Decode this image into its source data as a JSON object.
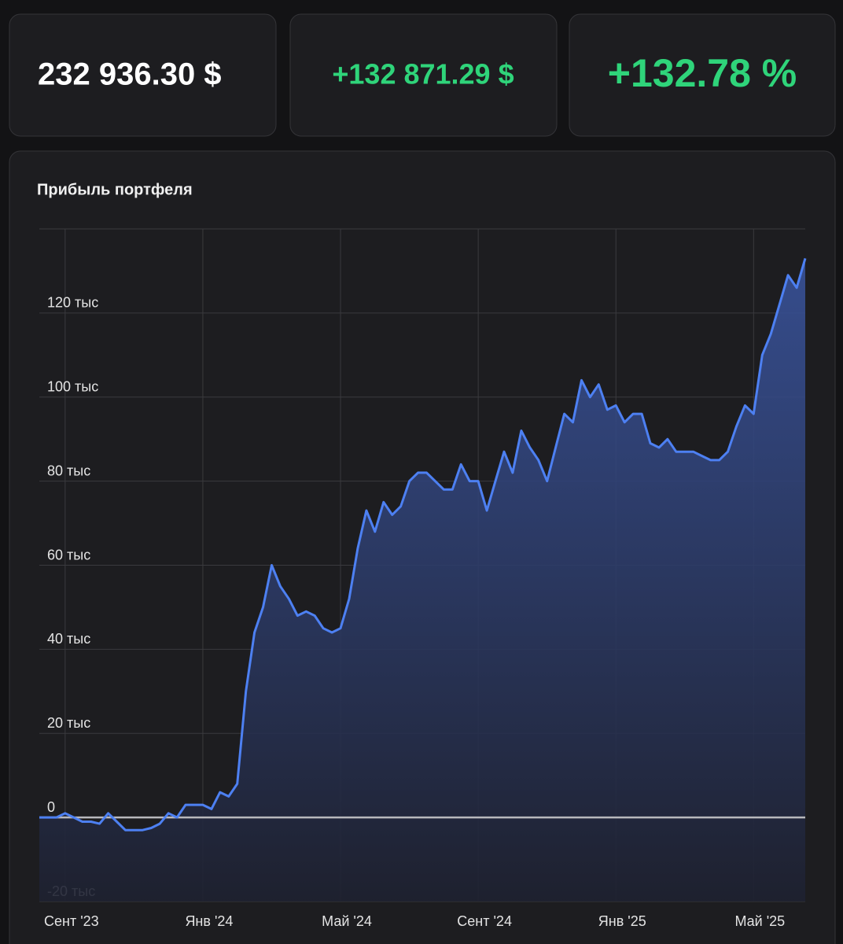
{
  "stats": {
    "value": "232 936.30 $",
    "change": "+132 871.29 $",
    "percent": "+132.78 %"
  },
  "chart_data": {
    "type": "area",
    "title": "Прибыль портфеля",
    "categories": [
      null,
      null,
      null,
      "Сент '23",
      null,
      null,
      null,
      null,
      null,
      null,
      null,
      null,
      null,
      null,
      null,
      null,
      null,
      null,
      null,
      "Янв '24",
      null,
      null,
      null,
      null,
      null,
      null,
      null,
      null,
      null,
      null,
      null,
      null,
      null,
      null,
      null,
      "Май '24",
      null,
      null,
      null,
      null,
      null,
      null,
      null,
      null,
      null,
      null,
      null,
      null,
      null,
      null,
      null,
      "Сент '24",
      null,
      null,
      null,
      null,
      null,
      null,
      null,
      null,
      null,
      null,
      null,
      null,
      null,
      null,
      null,
      "Янв '25",
      null,
      null,
      null,
      null,
      null,
      null,
      null,
      null,
      null,
      null,
      null,
      null,
      null,
      null,
      null,
      "Май '25",
      null,
      null,
      null,
      null,
      null,
      null
    ],
    "series": [
      {
        "color": "#4d80f2",
        "values": [
          0,
          0,
          0,
          1000,
          0,
          -1000,
          -1000,
          -1500,
          1000,
          -1000,
          -3000,
          -3000,
          -3000,
          -2500,
          -1500,
          1000,
          0,
          3000,
          3000,
          3000,
          2000,
          6000,
          5000,
          8000,
          30000,
          44000,
          50000,
          60000,
          55000,
          52000,
          48000,
          49000,
          48000,
          45000,
          44000,
          45000,
          52000,
          64000,
          73000,
          68000,
          75000,
          72000,
          74000,
          80000,
          82000,
          82000,
          80000,
          78000,
          78000,
          84000,
          80000,
          80000,
          73000,
          80000,
          87000,
          82000,
          92000,
          88000,
          85000,
          80000,
          88000,
          96000,
          94000,
          104000,
          100000,
          103000,
          97000,
          98000,
          94000,
          96000,
          96000,
          89000,
          88000,
          90000,
          87000,
          87000,
          87000,
          86000,
          85000,
          85000,
          87000,
          93000,
          98000,
          96000,
          110000,
          115000,
          122000,
          129000,
          126000,
          133000
        ]
      }
    ],
    "ylim": [
      -20000,
      140000
    ],
    "yticks": [
      {
        "value": -20000,
        "label": "-20 тыс"
      },
      0,
      {
        "value": 20000,
        "label": "20 тыс"
      },
      {
        "value": 40000,
        "label": "40 тыс"
      },
      {
        "value": 60000,
        "label": "60 тыс"
      },
      {
        "value": 80000,
        "label": "80 тыс"
      },
      {
        "value": 100000,
        "label": "100 тыс"
      },
      {
        "value": 120000,
        "label": "120 тыс"
      }
    ],
    "grid": true
  }
}
